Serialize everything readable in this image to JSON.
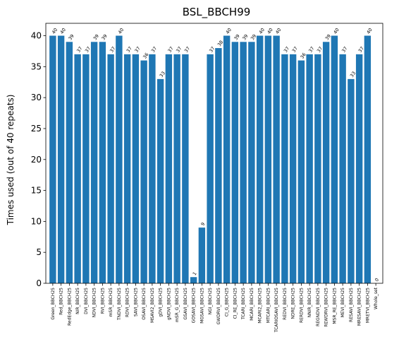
{
  "chart_data": {
    "type": "bar",
    "title": "BSL_BBCH99",
    "xlabel": "",
    "ylabel": "Times used (out of 40 repeats)",
    "ylim": [
      0,
      42
    ],
    "yticks": [
      0,
      5,
      10,
      15,
      20,
      25,
      30,
      35,
      40
    ],
    "grid": false,
    "color": "#1f77b4",
    "categories": [
      "Green_BBCH25",
      "Red_BBCH25",
      "RedEdge_BBCH25",
      "NIR_BBCH25",
      "DVI_BBCH25",
      "NDVI_BBCH25",
      "RVI_BBCH25",
      "mSR_BBCH25",
      "TNDVI_BBCH25",
      "RDVI_BBCH25",
      "SAVI_BBCH25",
      "OSAVI_BBCH25",
      "MSAVI2_BBCH25",
      "gDVI_BBCH25",
      "gNDVI_BBCH25",
      "mSR_G_BBCH25",
      "GSAVI_BBCH25",
      "GOSAVI_BBCH25",
      "MGSAVI_BBCH25",
      "NGI_BBCH25",
      "GWDRVI_BBCH25",
      "CI_G_BBCH25",
      "CI_RE_BBCH25",
      "TCARI_BBCH25",
      "MCARI_BBCH25",
      "MCARI2_BBCH25",
      "MTCARI_BBCH25",
      "TCARIOSAVI_BBCH25",
      "REDVI_BBCH25",
      "NDRE_BBCH25",
      "RERDVI_BBCH25",
      "NNIR_BBCH25",
      "REGNDVI_BBCH25",
      "REWDRVI_BBCH25",
      "MSR_RE_BBCH25",
      "MEVI_BBCH25",
      "RESAVI_BBCH25",
      "MRESAVI_BBCH25",
      "MRETVI_BBCH25",
      "Whole_set"
    ],
    "values": [
      40,
      40,
      39,
      37,
      37,
      39,
      39,
      37,
      40,
      37,
      37,
      36,
      37,
      33,
      37,
      37,
      37,
      1,
      9,
      37,
      38,
      40,
      39,
      39,
      39,
      40,
      40,
      40,
      37,
      37,
      36,
      37,
      37,
      39,
      40,
      37,
      33,
      37,
      40,
      0
    ]
  }
}
